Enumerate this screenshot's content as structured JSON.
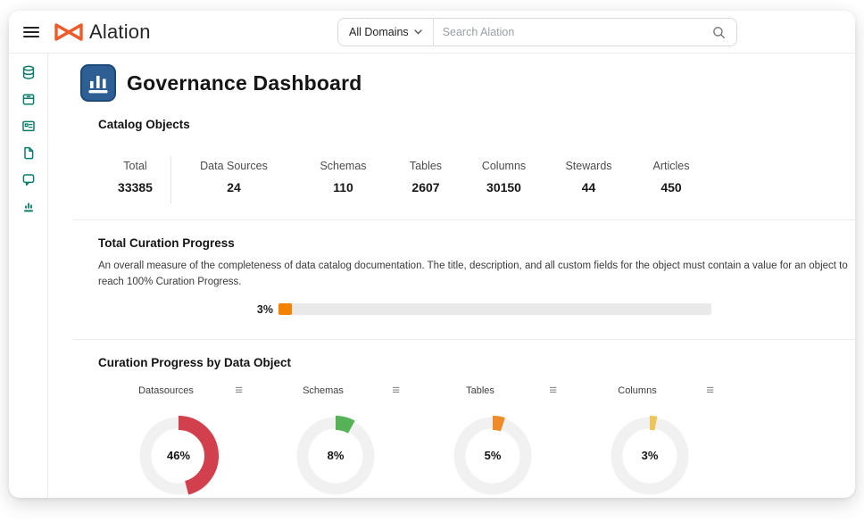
{
  "topbar": {
    "brand": "Alation",
    "brand_color": "#f05a28",
    "domain_filter": "All Domains",
    "search_placeholder": "Search Alation"
  },
  "sidebar": {
    "accent_color": "#0b7c6c",
    "items": [
      {
        "icon": "database-icon"
      },
      {
        "icon": "storage-box-icon"
      },
      {
        "icon": "glossary-card-icon"
      },
      {
        "icon": "document-icon"
      },
      {
        "icon": "conversation-icon"
      },
      {
        "icon": "bar-chart-icon"
      }
    ]
  },
  "page": {
    "title": "Governance Dashboard"
  },
  "catalog_objects": {
    "heading": "Catalog Objects",
    "stats": [
      {
        "label": "Total",
        "value": "33385"
      },
      {
        "label": "Data Sources",
        "value": "24"
      },
      {
        "label": "Schemas",
        "value": "110"
      },
      {
        "label": "Tables",
        "value": "2607"
      },
      {
        "label": "Columns",
        "value": "30150"
      },
      {
        "label": "Stewards",
        "value": "44"
      },
      {
        "label": "Articles",
        "value": "450"
      }
    ]
  },
  "curation_progress": {
    "heading": "Total Curation Progress",
    "description": "An overall measure of the completeness of data catalog documentation. The title, description, and all custom fields for the object must contain a value for an object to reach 100% Curation Progress.",
    "percent": 3,
    "percent_label": "3%",
    "bar_color": "#f28200",
    "track_color": "#e9e9e9"
  },
  "chart_data": {
    "type": "pie",
    "variant": "donut-gauges",
    "heading": "Curation Progress by Data Object",
    "start_angle_deg": 0,
    "direction": "clockwise",
    "ring_color": "#f1f1f2",
    "charts": [
      {
        "title": "Datasources",
        "percent": 46,
        "percent_label": "46%",
        "color": "#d2404e"
      },
      {
        "title": "Schemas",
        "percent": 8,
        "percent_label": "8%",
        "color": "#55b257"
      },
      {
        "title": "Tables",
        "percent": 5,
        "percent_label": "5%",
        "color": "#ef8c2a"
      },
      {
        "title": "Columns",
        "percent": 3,
        "percent_label": "3%",
        "color": "#eec45c"
      }
    ]
  }
}
